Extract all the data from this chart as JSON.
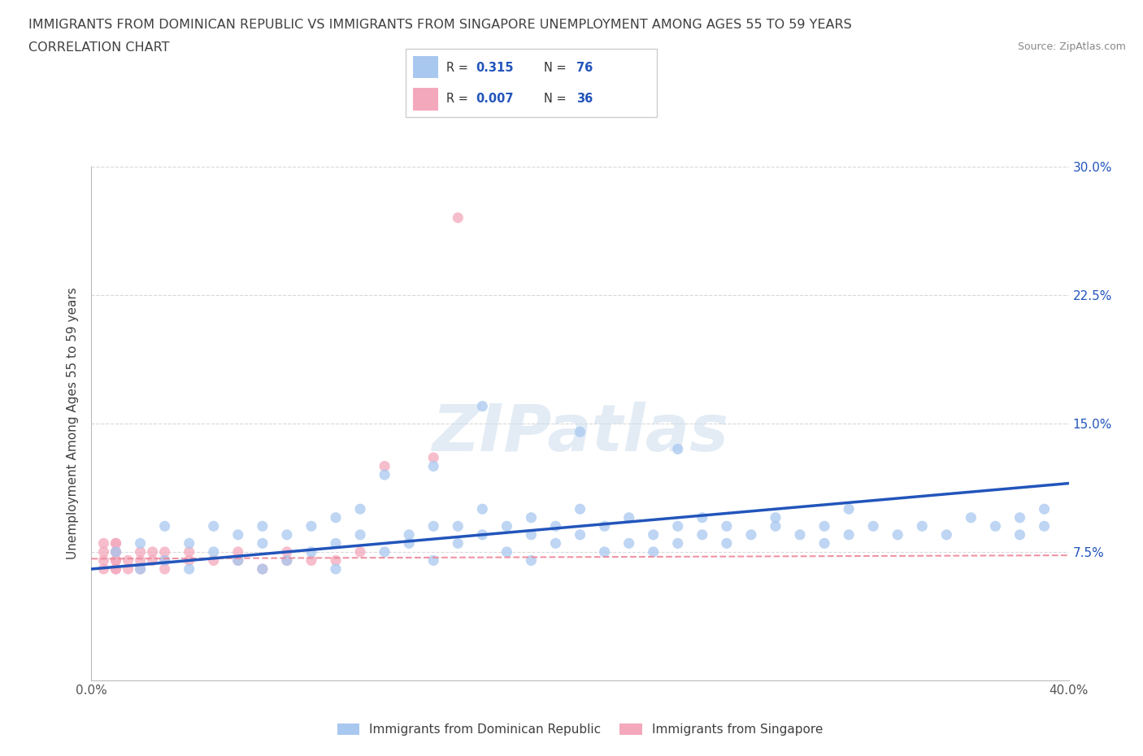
{
  "title_line1": "IMMIGRANTS FROM DOMINICAN REPUBLIC VS IMMIGRANTS FROM SINGAPORE UNEMPLOYMENT AMONG AGES 55 TO 59 YEARS",
  "title_line2": "CORRELATION CHART",
  "source_text": "Source: ZipAtlas.com",
  "ylabel": "Unemployment Among Ages 55 to 59 years",
  "xlim": [
    0.0,
    0.4
  ],
  "ylim": [
    0.0,
    0.3
  ],
  "xticks": [
    0.0,
    0.1,
    0.2,
    0.3,
    0.4
  ],
  "xticklabels": [
    "0.0%",
    "",
    "",
    "",
    "40.0%"
  ],
  "yticks": [
    0.0,
    0.075,
    0.15,
    0.225,
    0.3
  ],
  "right_yticklabels": [
    "",
    "7.5%",
    "15.0%",
    "22.5%",
    "30.0%"
  ],
  "watermark": "ZIPatlas",
  "blue_color": "#a8c8f0",
  "pink_color": "#f4a8bc",
  "blue_line_color": "#2255bb",
  "pink_line_color": "#ee8899",
  "grid_color": "#d8d8d8",
  "title_color": "#404040",
  "legend_R_N_color": "#2255bb",
  "blue_scatter_x": [
    0.01,
    0.02,
    0.02,
    0.03,
    0.03,
    0.04,
    0.04,
    0.05,
    0.05,
    0.06,
    0.06,
    0.07,
    0.07,
    0.07,
    0.08,
    0.08,
    0.09,
    0.09,
    0.1,
    0.1,
    0.1,
    0.11,
    0.11,
    0.12,
    0.12,
    0.13,
    0.13,
    0.14,
    0.14,
    0.14,
    0.15,
    0.15,
    0.16,
    0.16,
    0.17,
    0.17,
    0.18,
    0.18,
    0.18,
    0.19,
    0.19,
    0.2,
    0.2,
    0.21,
    0.21,
    0.22,
    0.22,
    0.23,
    0.23,
    0.24,
    0.24,
    0.25,
    0.25,
    0.26,
    0.26,
    0.27,
    0.28,
    0.28,
    0.29,
    0.3,
    0.3,
    0.31,
    0.31,
    0.32,
    0.33,
    0.34,
    0.35,
    0.36,
    0.37,
    0.38,
    0.38,
    0.39,
    0.39,
    0.16,
    0.2,
    0.24
  ],
  "blue_scatter_y": [
    0.075,
    0.065,
    0.08,
    0.07,
    0.09,
    0.065,
    0.08,
    0.075,
    0.09,
    0.07,
    0.085,
    0.08,
    0.065,
    0.09,
    0.085,
    0.07,
    0.075,
    0.09,
    0.08,
    0.065,
    0.095,
    0.085,
    0.1,
    0.075,
    0.12,
    0.08,
    0.085,
    0.07,
    0.09,
    0.125,
    0.09,
    0.08,
    0.085,
    0.1,
    0.075,
    0.09,
    0.085,
    0.095,
    0.07,
    0.08,
    0.09,
    0.085,
    0.1,
    0.075,
    0.09,
    0.08,
    0.095,
    0.085,
    0.075,
    0.09,
    0.08,
    0.085,
    0.095,
    0.09,
    0.08,
    0.085,
    0.09,
    0.095,
    0.085,
    0.09,
    0.08,
    0.085,
    0.1,
    0.09,
    0.085,
    0.09,
    0.085,
    0.095,
    0.09,
    0.085,
    0.095,
    0.09,
    0.1,
    0.16,
    0.145,
    0.135
  ],
  "pink_scatter_x": [
    0.005,
    0.005,
    0.005,
    0.005,
    0.01,
    0.01,
    0.01,
    0.01,
    0.01,
    0.01,
    0.01,
    0.01,
    0.015,
    0.015,
    0.02,
    0.02,
    0.02,
    0.025,
    0.025,
    0.03,
    0.03,
    0.03,
    0.04,
    0.04,
    0.05,
    0.06,
    0.06,
    0.07,
    0.08,
    0.08,
    0.09,
    0.1,
    0.11,
    0.12,
    0.14,
    0.15
  ],
  "pink_scatter_y": [
    0.07,
    0.065,
    0.075,
    0.08,
    0.065,
    0.07,
    0.075,
    0.08,
    0.065,
    0.07,
    0.075,
    0.08,
    0.065,
    0.07,
    0.065,
    0.07,
    0.075,
    0.07,
    0.075,
    0.065,
    0.07,
    0.075,
    0.07,
    0.075,
    0.07,
    0.07,
    0.075,
    0.065,
    0.07,
    0.075,
    0.07,
    0.07,
    0.075,
    0.125,
    0.13,
    0.27
  ],
  "blue_trend_x0": 0.0,
  "blue_trend_x1": 0.4,
  "blue_trend_y0": 0.065,
  "blue_trend_y1": 0.115,
  "pink_trend_x0": 0.0,
  "pink_trend_x1": 0.4,
  "pink_trend_y0": 0.071,
  "pink_trend_y1": 0.073
}
